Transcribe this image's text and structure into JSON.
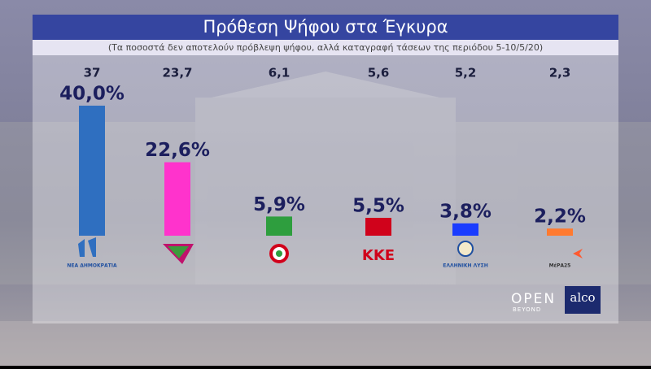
{
  "chart_data": {
    "type": "bar",
    "title": "Πρόθεση Ψήφου στα Έγκυρα",
    "subtitle": "(Τα ποσοστά δεν αποτελούν πρόβλεψη ψήφου, αλλά καταγραφή τάσεων της περιόδου 5-10/5/20)",
    "categories": [
      "ΝΕΑ ΔΗΜΟΚΡΑΤΙΑ",
      null,
      null,
      "ΚΚΕ",
      "ΕΛΛΗΝΙΚΗ ΛΥΣΗ",
      "ΜέΡΑ25"
    ],
    "values": [
      40.0,
      22.6,
      5.9,
      5.5,
      3.8,
      2.2
    ],
    "value_labels": [
      "40,0%",
      "22,6%",
      "5,9%",
      "5,5%",
      "3,8%",
      "2,2%"
    ],
    "previous_values": [
      37,
      23.7,
      6.1,
      5.6,
      5.2,
      2.3
    ],
    "previous_value_labels": [
      "37",
      "23,7",
      "6,1",
      "5,6",
      "5,2",
      "2,3"
    ],
    "colors": [
      "#2f6fc0",
      "#ff33cc",
      "#2e9e3e",
      "#d0021b",
      "#1a3cff",
      "#ff7a30"
    ]
  },
  "branding": {
    "open": "OPEN",
    "beyond": "BEYOND",
    "alco": "alco"
  }
}
